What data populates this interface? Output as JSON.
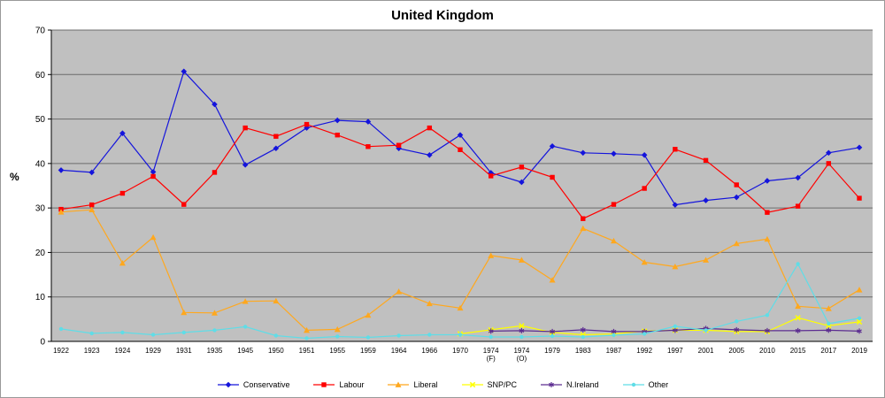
{
  "figure": {
    "border_color": "#999999"
  },
  "chart_data": {
    "type": "line",
    "title": "United Kingdom",
    "xlabel": "",
    "ylabel": "%",
    "ylim": [
      0,
      70
    ],
    "ytick_step": 10,
    "grid": "horizontal",
    "legend_position": "bottom",
    "plot_background": "#c0c0c0",
    "gridline_color": "#6b6b6b",
    "axis_color": "#000000",
    "categories": [
      "1922",
      "1923",
      "1924",
      "1929",
      "1931",
      "1935",
      "1945",
      "1950",
      "1951",
      "1955",
      "1959",
      "1964",
      "1966",
      "1970",
      "1974 (F)",
      "1974 (O)",
      "1979",
      "1983",
      "1987",
      "1992",
      "1997",
      "2001",
      "2005",
      "2010",
      "2015",
      "2017",
      "2019"
    ],
    "series": [
      {
        "name": "Conservative",
        "color": "#1414dc",
        "marker": "diamond",
        "values": [
          38.5,
          38.0,
          46.8,
          38.1,
          60.7,
          53.3,
          39.7,
          43.4,
          48.0,
          49.7,
          49.4,
          43.4,
          41.9,
          46.4,
          37.9,
          35.8,
          43.9,
          42.4,
          42.2,
          41.9,
          30.7,
          31.7,
          32.4,
          36.1,
          36.8,
          42.4,
          43.6
        ]
      },
      {
        "name": "Labour",
        "color": "#ff0000",
        "marker": "square",
        "values": [
          29.7,
          30.7,
          33.3,
          37.1,
          30.8,
          38.0,
          48.0,
          46.1,
          48.8,
          46.4,
          43.8,
          44.1,
          48.0,
          43.1,
          37.2,
          39.2,
          36.9,
          27.6,
          30.8,
          34.4,
          43.2,
          40.7,
          35.2,
          29.0,
          30.4,
          40.0,
          32.2
        ]
      },
      {
        "name": "Liberal",
        "color": "#ffa81e",
        "marker": "triangle",
        "values": [
          29.1,
          29.6,
          17.6,
          23.4,
          6.5,
          6.4,
          9.0,
          9.1,
          2.5,
          2.7,
          5.9,
          11.2,
          8.5,
          7.5,
          19.3,
          18.3,
          13.8,
          25.4,
          22.6,
          17.8,
          16.8,
          18.3,
          22.0,
          23.0,
          7.9,
          7.4,
          11.6
        ]
      },
      {
        "name": "SNP/PC",
        "color": "#ffff00",
        "marker": "x",
        "values": [
          null,
          null,
          null,
          null,
          null,
          null,
          null,
          null,
          null,
          null,
          null,
          null,
          null,
          1.7,
          2.6,
          3.5,
          2.0,
          1.5,
          1.7,
          2.3,
          2.5,
          2.5,
          2.2,
          2.2,
          5.3,
          3.5,
          4.4
        ]
      },
      {
        "name": "N.Ireland",
        "color": "#5c2d91",
        "marker": "star",
        "values": [
          null,
          null,
          null,
          null,
          null,
          null,
          null,
          null,
          null,
          null,
          null,
          null,
          null,
          null,
          2.3,
          2.4,
          2.2,
          2.6,
          2.2,
          2.2,
          2.5,
          2.9,
          2.6,
          2.4,
          2.4,
          2.5,
          2.3
        ]
      },
      {
        "name": "Other",
        "color": "#5fdde7",
        "marker": "dot",
        "values": [
          2.8,
          1.8,
          2.0,
          1.5,
          2.0,
          2.5,
          3.3,
          1.3,
          0.7,
          1.1,
          0.9,
          1.3,
          1.5,
          1.5,
          1.0,
          1.0,
          1.2,
          1.0,
          1.4,
          1.7,
          3.4,
          2.5,
          4.5,
          5.9,
          17.4,
          4.0,
          5.2
        ]
      }
    ]
  }
}
